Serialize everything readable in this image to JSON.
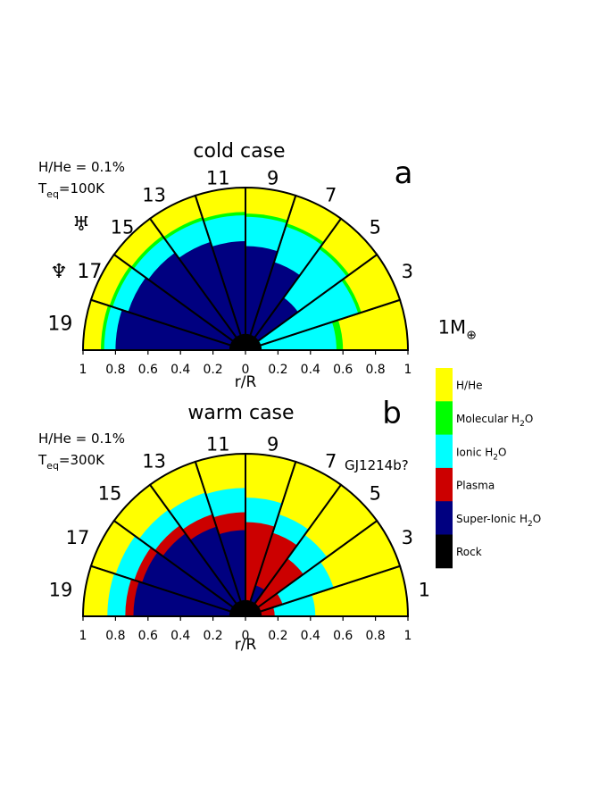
{
  "chart_data": [
    {
      "type": "semicircle-wedge-interior",
      "panel_letter": "a",
      "title": "cold case",
      "info_line1": "H/He = 0.1%",
      "info_T": "T",
      "info_T_sub": "eq",
      "info_T_val": "=100K",
      "xlabel": "r/R",
      "ticks": [
        "1",
        "0.8",
        "0.6",
        "0.4",
        "0.2",
        "0",
        "0.2",
        "0.4",
        "0.6",
        "0.8",
        "1"
      ],
      "xlim": [
        -1,
        1
      ],
      "planet_symbols": [
        {
          "symbol": "♅",
          "name": "uranus",
          "mass": "15"
        },
        {
          "symbol": "♆",
          "name": "neptune",
          "mass": "17"
        }
      ],
      "wedges": [
        {
          "mass": "1",
          "label": "1M",
          "suffix": "⊕",
          "layers": [
            {
              "phase": "rock",
              "r": 0.1
            },
            {
              "phase": "ionic",
              "r": 0.56
            },
            {
              "phase": "molecular",
              "r": 0.6
            },
            {
              "phase": "hhe",
              "r": 1.0
            }
          ]
        },
        {
          "mass": "3",
          "label": "3",
          "layers": [
            {
              "phase": "rock",
              "r": 0.1
            },
            {
              "phase": "ionic",
              "r": 0.73
            },
            {
              "phase": "molecular",
              "r": 0.75
            },
            {
              "phase": "hhe",
              "r": 1.0
            }
          ]
        },
        {
          "mass": "5",
          "label": "5",
          "layers": [
            {
              "phase": "rock",
              "r": 0.1
            },
            {
              "phase": "superionic",
              "r": 0.4
            },
            {
              "phase": "ionic",
              "r": 0.77
            },
            {
              "phase": "molecular",
              "r": 0.79
            },
            {
              "phase": "hhe",
              "r": 1.0
            }
          ]
        },
        {
          "mass": "7",
          "label": "7",
          "layers": [
            {
              "phase": "rock",
              "r": 0.1
            },
            {
              "phase": "superionic",
              "r": 0.57
            },
            {
              "phase": "ionic",
              "r": 0.8
            },
            {
              "phase": "molecular",
              "r": 0.82
            },
            {
              "phase": "hhe",
              "r": 1.0
            }
          ]
        },
        {
          "mass": "9",
          "label": "9",
          "layers": [
            {
              "phase": "rock",
              "r": 0.1
            },
            {
              "phase": "superionic",
              "r": 0.64
            },
            {
              "phase": "ionic",
              "r": 0.82
            },
            {
              "phase": "molecular",
              "r": 0.84
            },
            {
              "phase": "hhe",
              "r": 1.0
            }
          ]
        },
        {
          "mass": "11",
          "label": "11",
          "layers": [
            {
              "phase": "rock",
              "r": 0.1
            },
            {
              "phase": "superionic",
              "r": 0.67
            },
            {
              "phase": "ionic",
              "r": 0.83
            },
            {
              "phase": "molecular",
              "r": 0.85
            },
            {
              "phase": "hhe",
              "r": 1.0
            }
          ]
        },
        {
          "mass": "13",
          "label": "13",
          "layers": [
            {
              "phase": "rock",
              "r": 0.1
            },
            {
              "phase": "superionic",
              "r": 0.7
            },
            {
              "phase": "ionic",
              "r": 0.84
            },
            {
              "phase": "molecular",
              "r": 0.86
            },
            {
              "phase": "hhe",
              "r": 1.0
            }
          ]
        },
        {
          "mass": "15",
          "label": "15",
          "layers": [
            {
              "phase": "rock",
              "r": 0.1
            },
            {
              "phase": "superionic",
              "r": 0.74
            },
            {
              "phase": "ionic",
              "r": 0.85
            },
            {
              "phase": "molecular",
              "r": 0.87
            },
            {
              "phase": "hhe",
              "r": 1.0
            }
          ]
        },
        {
          "mass": "17",
          "label": "17",
          "layers": [
            {
              "phase": "rock",
              "r": 0.1
            },
            {
              "phase": "superionic",
              "r": 0.76
            },
            {
              "phase": "ionic",
              "r": 0.86
            },
            {
              "phase": "molecular",
              "r": 0.88
            },
            {
              "phase": "hhe",
              "r": 1.0
            }
          ]
        },
        {
          "mass": "19",
          "label": "19",
          "layers": [
            {
              "phase": "rock",
              "r": 0.1
            },
            {
              "phase": "superionic",
              "r": 0.8
            },
            {
              "phase": "ionic",
              "r": 0.87
            },
            {
              "phase": "molecular",
              "r": 0.89
            },
            {
              "phase": "hhe",
              "r": 1.0
            }
          ]
        }
      ]
    },
    {
      "type": "semicircle-wedge-interior",
      "panel_letter": "b",
      "title": "warm case",
      "info_line1": "H/He = 0.1%",
      "info_T": "T",
      "info_T_sub": "eq",
      "info_T_val": "=300K",
      "xlabel": "r/R",
      "ticks": [
        "1",
        "0.8",
        "0.6",
        "0.4",
        "0.2",
        "0",
        "0.2",
        "0.4",
        "0.6",
        "0.8",
        "1"
      ],
      "xlim": [
        -1,
        1
      ],
      "annotation": "GJ1214b?",
      "wedges": [
        {
          "mass": "1",
          "label": "1",
          "layers": [
            {
              "phase": "rock",
              "r": 0.1
            },
            {
              "phase": "plasma",
              "r": 0.18
            },
            {
              "phase": "ionic",
              "r": 0.43
            },
            {
              "phase": "hhe",
              "r": 1.0
            }
          ]
        },
        {
          "mass": "3",
          "label": "3",
          "layers": [
            {
              "phase": "rock",
              "r": 0.1
            },
            {
              "phase": "plasma",
              "r": 0.24
            },
            {
              "phase": "ionic",
              "r": 0.57
            },
            {
              "phase": "hhe",
              "r": 1.0
            }
          ]
        },
        {
          "mass": "5",
          "label": "5",
          "layers": [
            {
              "phase": "rock",
              "r": 0.1
            },
            {
              "phase": "plasma",
              "r": 0.44
            },
            {
              "phase": "ionic",
              "r": 0.62
            },
            {
              "phase": "hhe",
              "r": 1.0
            }
          ]
        },
        {
          "mass": "7",
          "label": "7",
          "layers": [
            {
              "phase": "rock",
              "r": 0.1
            },
            {
              "phase": "superionic",
              "r": 0.2
            },
            {
              "phase": "plasma",
              "r": 0.54
            },
            {
              "phase": "ionic",
              "r": 0.66
            },
            {
              "phase": "hhe",
              "r": 1.0
            }
          ]
        },
        {
          "mass": "9",
          "label": "9",
          "layers": [
            {
              "phase": "rock",
              "r": 0.1
            },
            {
              "phase": "plasma",
              "r": 0.58
            },
            {
              "phase": "ionic",
              "r": 0.73
            },
            {
              "phase": "hhe",
              "r": 1.0
            }
          ]
        },
        {
          "mass": "11",
          "label": "11",
          "layers": [
            {
              "phase": "rock",
              "r": 0.1
            },
            {
              "phase": "superionic",
              "r": 0.53
            },
            {
              "phase": "plasma",
              "r": 0.64
            },
            {
              "phase": "ionic",
              "r": 0.79
            },
            {
              "phase": "hhe",
              "r": 1.0
            }
          ]
        },
        {
          "mass": "13",
          "label": "13",
          "layers": [
            {
              "phase": "rock",
              "r": 0.1
            },
            {
              "phase": "superionic",
              "r": 0.58
            },
            {
              "phase": "plasma",
              "r": 0.66
            },
            {
              "phase": "ionic",
              "r": 0.8
            },
            {
              "phase": "hhe",
              "r": 1.0
            }
          ]
        },
        {
          "mass": "15",
          "label": "15",
          "layers": [
            {
              "phase": "rock",
              "r": 0.1
            },
            {
              "phase": "superionic",
              "r": 0.63
            },
            {
              "phase": "plasma",
              "r": 0.69
            },
            {
              "phase": "ionic",
              "r": 0.81
            },
            {
              "phase": "hhe",
              "r": 1.0
            }
          ]
        },
        {
          "mass": "17",
          "label": "17",
          "layers": [
            {
              "phase": "rock",
              "r": 0.1
            },
            {
              "phase": "superionic",
              "r": 0.67
            },
            {
              "phase": "plasma",
              "r": 0.72
            },
            {
              "phase": "ionic",
              "r": 0.84
            },
            {
              "phase": "hhe",
              "r": 1.0
            }
          ]
        },
        {
          "mass": "19",
          "label": "19",
          "layers": [
            {
              "phase": "rock",
              "r": 0.1
            },
            {
              "phase": "superionic",
              "r": 0.69
            },
            {
              "phase": "plasma",
              "r": 0.74
            },
            {
              "phase": "ionic",
              "r": 0.85
            },
            {
              "phase": "hhe",
              "r": 1.0
            }
          ]
        }
      ]
    }
  ],
  "legend": [
    {
      "phase": "hhe",
      "label": "H/He",
      "color": "#ffff00"
    },
    {
      "phase": "molecular",
      "label": "Molecular H",
      "sub": "2",
      "tail": "O",
      "color": "#00ff00"
    },
    {
      "phase": "ionic",
      "label": "Ionic H",
      "sub": "2",
      "tail": "O",
      "color": "#00ffff"
    },
    {
      "phase": "plasma",
      "label": "Plasma",
      "color": "#cc0000"
    },
    {
      "phase": "superionic",
      "label": "Super-Ionic H",
      "sub": "2",
      "tail": "O",
      "color": "#000080"
    },
    {
      "phase": "rock",
      "label": "Rock",
      "color": "#000000"
    }
  ]
}
